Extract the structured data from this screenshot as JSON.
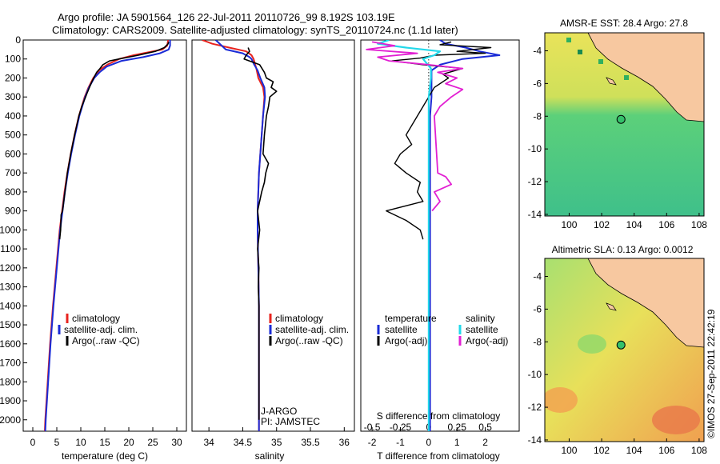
{
  "header": {
    "line1": "Argo profile: JA 5901564_126 22-Jul-2011 20110726_99 8.192S 103.19E",
    "line2": "Climatology: CARS2009. Satellite-adjusted climatology: synTS_20110724.nc (1.1d later)"
  },
  "colors": {
    "clim": "#e8231e",
    "sat": "#1a2bd6",
    "argo": "#000000",
    "sat_s": "#22d8ea",
    "argo_s": "#e21fd2",
    "land": "#f7c8a0",
    "green": "#34c06a"
  },
  "depth_ticks": [
    "0",
    "100",
    "200",
    "300",
    "400",
    "500",
    "600",
    "700",
    "800",
    "900",
    "1000",
    "1100",
    "1200",
    "1300",
    "1400",
    "1500",
    "1600",
    "1700",
    "1800",
    "1900",
    "2000"
  ],
  "chart_data": [
    {
      "type": "line",
      "id": "temperature",
      "xlabel": "temperature (deg C)",
      "ylabel": "depth (m)",
      "xlim": [
        -2,
        32
      ],
      "ylim": [
        2060,
        0
      ],
      "xticks": [
        "0",
        "5",
        "10",
        "15",
        "20",
        "25",
        "30"
      ],
      "legend": [
        "climatology",
        "satellite-adj. clim.",
        "Argo(..raw -QC)"
      ],
      "legend_position": "lower-middle",
      "series": [
        {
          "name": "climatology",
          "depth": [
            0,
            30,
            50,
            60,
            80,
            100,
            130,
            160,
            200,
            250,
            300,
            400,
            500,
            600,
            700,
            800,
            900,
            1000,
            1200,
            1400,
            1600,
            1800,
            2000,
            2060
          ],
          "values": [
            28.2,
            28.0,
            27.0,
            25.0,
            21.0,
            18.0,
            15.5,
            13.8,
            12.6,
            11.6,
            10.8,
            9.6,
            8.7,
            7.9,
            7.2,
            6.6,
            6.1,
            5.6,
            4.9,
            4.2,
            3.6,
            3.1,
            2.6,
            2.5
          ]
        },
        {
          "name": "satellite-adj. clim.",
          "depth": [
            0,
            30,
            50,
            70,
            90,
            110,
            140,
            170,
            200,
            250,
            300,
            400,
            500,
            600,
            700,
            800,
            900,
            1000,
            1200,
            1400,
            1600,
            1800,
            2000,
            2060
          ],
          "values": [
            28.6,
            28.6,
            28.3,
            26.5,
            23.0,
            18.5,
            15.4,
            13.9,
            12.8,
            11.7,
            10.9,
            9.7,
            8.8,
            8.0,
            7.3,
            6.7,
            6.2,
            5.7,
            5.0,
            4.3,
            3.7,
            3.2,
            2.7,
            2.6
          ]
        },
        {
          "name": "Argo(..raw -QC)",
          "depth": [
            10,
            20,
            40,
            60,
            80,
            100,
            110,
            130,
            150,
            170,
            200,
            220,
            250,
            280,
            300,
            350,
            400,
            500,
            600,
            700,
            800,
            900,
            920,
            1000,
            1050
          ],
          "values": [
            28.3,
            28.2,
            27.4,
            25.5,
            22.0,
            18.0,
            16.0,
            14.6,
            14.0,
            13.3,
            12.7,
            12.3,
            11.8,
            11.3,
            11.0,
            10.2,
            9.6,
            8.7,
            7.9,
            7.2,
            6.7,
            6.2,
            5.9,
            5.8,
            5.6
          ]
        }
      ]
    },
    {
      "type": "line",
      "id": "salinity",
      "xlabel": "salinity",
      "xlim": [
        33.75,
        36.15
      ],
      "ylim": [
        2060,
        0
      ],
      "xticks": [
        "34",
        "34.5",
        "35",
        "35.5",
        "36"
      ],
      "legend": [
        "climatology",
        "satellite-adj. clim.",
        "Argo(..raw -QC)"
      ],
      "legend_position": "lower-right",
      "annotations": [
        "J-ARGO",
        "PI: JAMSTEC"
      ],
      "series": [
        {
          "name": "climatology",
          "depth": [
            0,
            20,
            40,
            60,
            80,
            100,
            150,
            200,
            250,
            300,
            400,
            500,
            600,
            700,
            800,
            900,
            1000,
            1200,
            1400,
            1600,
            1800,
            2000,
            2060
          ],
          "values": [
            33.9,
            34.05,
            34.3,
            34.55,
            34.63,
            34.66,
            34.7,
            34.73,
            34.8,
            34.82,
            34.8,
            34.78,
            34.76,
            34.74,
            34.73,
            34.72,
            34.72,
            34.73,
            34.74,
            34.74,
            34.74,
            34.74,
            34.74
          ]
        },
        {
          "name": "satellite-adj. clim.",
          "depth": [
            0,
            50,
            70,
            90,
            100,
            130,
            160,
            200,
            250,
            300,
            400,
            500,
            600,
            700,
            800,
            900,
            1000,
            1200,
            1400,
            1600,
            1800,
            2000,
            2060
          ],
          "values": [
            34.1,
            34.25,
            34.5,
            34.6,
            34.63,
            34.67,
            34.72,
            34.76,
            34.82,
            34.83,
            34.8,
            34.78,
            34.76,
            34.74,
            34.73,
            34.72,
            34.72,
            34.73,
            34.74,
            34.74,
            34.74,
            34.74,
            34.74
          ]
        },
        {
          "name": "Argo(..raw -QC)",
          "depth": [
            40,
            60,
            80,
            100,
            130,
            170,
            200,
            220,
            250,
            270,
            300,
            350,
            400,
            500,
            600,
            650,
            700,
            750,
            800,
            900,
            1000,
            1100,
            1200,
            1300,
            1400,
            1500,
            1600,
            1800,
            1900,
            2000
          ],
          "values": [
            34.58,
            34.6,
            34.55,
            34.52,
            34.75,
            34.82,
            34.85,
            34.95,
            34.92,
            35.0,
            34.9,
            34.88,
            34.85,
            34.82,
            34.8,
            34.88,
            34.84,
            34.82,
            34.78,
            34.72,
            34.75,
            34.72,
            34.74,
            34.73,
            34.74,
            34.74,
            34.74,
            34.74,
            34.74,
            34.74
          ]
        }
      ]
    },
    {
      "type": "line",
      "id": "differences",
      "xlabel": "T difference from climatology",
      "xlabel_top": "S difference from climatology",
      "xlim": [
        -2.4,
        3.2
      ],
      "ylim": [
        2060,
        0
      ],
      "xticks": [
        "-2",
        "-1",
        "0",
        "1",
        "2"
      ],
      "xticks_s": [
        "-0.5",
        "-0.25",
        "0",
        "0.25",
        "0.5"
      ],
      "legend_t": {
        "title": "temperature",
        "entries": [
          "satellite",
          "Argo(-adj)"
        ]
      },
      "legend_s": {
        "title": "salinity",
        "entries": [
          "satellite",
          "Argo(-adj)"
        ]
      },
      "series": [
        {
          "name": "temperature satellite",
          "depth": [
            0,
            20,
            40,
            60,
            80,
            100,
            130,
            160,
            200,
            300,
            400,
            600,
            800,
            1000,
            1200,
            1500,
            1800,
            2000,
            2060
          ],
          "values": [
            0.4,
            0.6,
            1.3,
            1.8,
            2.5,
            1.2,
            0.4,
            0.1,
            0.1,
            0.1,
            0.05,
            0.05,
            0.05,
            0.05,
            0.05,
            0.05,
            0.05,
            0.05,
            0.05
          ]
        },
        {
          "name": "temperature Argo(-adj)",
          "depth": [
            10,
            25,
            40,
            60,
            70,
            80,
            95,
            110,
            130,
            150,
            180,
            200,
            250,
            300,
            400,
            500,
            550,
            600,
            650,
            700,
            750,
            800,
            850,
            900,
            950,
            1000,
            1050
          ],
          "values": [
            0.8,
            0.4,
            2.2,
            1.0,
            2.0,
            0.2,
            -0.3,
            -1.3,
            -0.2,
            1.2,
            0.5,
            0.7,
            0.2,
            0.0,
            -0.4,
            -0.8,
            -0.6,
            -1.0,
            -1.2,
            -0.8,
            -0.3,
            -0.4,
            -0.2,
            -1.5,
            -0.8,
            -0.3,
            -0.2
          ]
        },
        {
          "name": "salinity satellite",
          "depth": [
            0,
            20,
            40,
            60,
            80,
            100,
            150,
            200,
            300,
            400,
            600,
            800,
            1000,
            1500,
            2000,
            2060
          ],
          "values": [
            -0.35,
            -0.45,
            -0.2,
            0.1,
            0.05,
            -0.05,
            0.02,
            0.02,
            0.0,
            0.0,
            0.0,
            0.0,
            0.0,
            0.0,
            0.0,
            0.0
          ]
        },
        {
          "name": "salinity Argo(-adj)",
          "depth": [
            10,
            30,
            50,
            70,
            90,
            110,
            130,
            150,
            170,
            200,
            230,
            260,
            300,
            350,
            400,
            700,
            720,
            760,
            800,
            850,
            900
          ],
          "values": [
            -0.5,
            -0.3,
            -0.55,
            -0.1,
            -0.45,
            -0.35,
            0.0,
            0.3,
            0.08,
            0.25,
            0.15,
            0.3,
            0.2,
            0.1,
            0.05,
            0.08,
            0.15,
            0.2,
            0.05,
            0.1,
            0.03
          ]
        }
      ]
    },
    {
      "type": "heatmap",
      "id": "sst-map",
      "title": "AMSR-E SST: 28.4 Argo: 27.8",
      "xlim": [
        98.5,
        108.3
      ],
      "ylim": [
        -14.1,
        -2.9
      ],
      "xticks": [
        "100",
        "102",
        "104",
        "106",
        "108"
      ],
      "yticks": [
        "-4",
        "-6",
        "-8",
        "-10",
        "-12",
        "-14"
      ],
      "argo_position": {
        "lon": 103.19,
        "lat": -8.192
      }
    },
    {
      "type": "heatmap",
      "id": "sla-map",
      "title": "Altimetric SLA: 0.13 Argo: 0.0012",
      "xlim": [
        98.5,
        108.3
      ],
      "ylim": [
        -14.1,
        -2.9
      ],
      "xticks": [
        "100",
        "102",
        "104",
        "106",
        "108"
      ],
      "yticks": [
        "-4",
        "-6",
        "-8",
        "-10",
        "-12",
        "-14"
      ],
      "argo_position": {
        "lon": 103.19,
        "lat": -8.192
      }
    }
  ],
  "footer": {
    "credit": "©IMOS 27-Sep-2011 22:42:19"
  }
}
